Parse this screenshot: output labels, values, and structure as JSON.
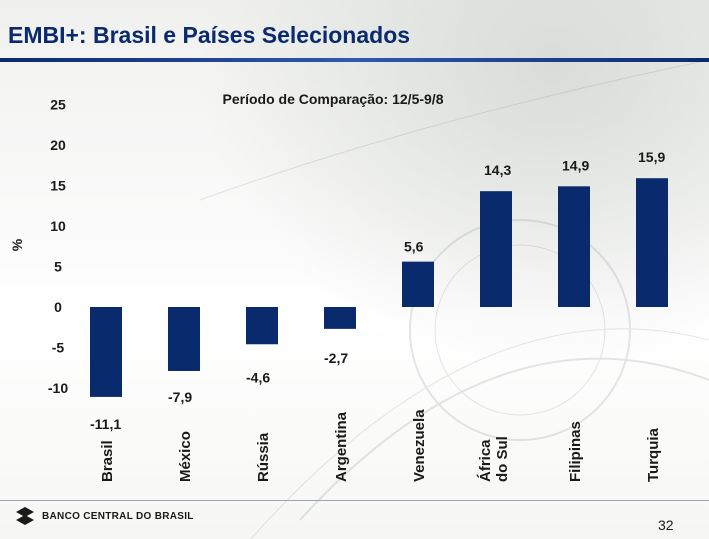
{
  "title": "EMBI+: Brasil e Países Selecionados",
  "footer": {
    "bank_name": "BANCO CENTRAL DO BRASIL",
    "page_number": "32"
  },
  "chart_data": {
    "type": "bar",
    "subtitle": "Período de Comparação: 12/5-9/8",
    "ylabel": "%",
    "xlabel": "",
    "ylim": [
      -10,
      25
    ],
    "yticks": [
      25,
      20,
      15,
      10,
      5,
      0,
      -5,
      -10
    ],
    "grid": false,
    "legend": "none",
    "bar_color": "#0a2a6e",
    "categories": [
      "Brasil",
      "México",
      "Rússia",
      "Argentina",
      "Venezuela",
      "África do Sul",
      "Filipinas",
      "Turquia"
    ],
    "values": [
      -11.1,
      -7.9,
      -4.6,
      -2.7,
      5.6,
      14.3,
      14.9,
      15.9
    ],
    "data_labels": [
      "-11,1",
      "-7,9",
      "-4,6",
      "-2,7",
      "5,6",
      "14,3",
      "14,9",
      "15,9"
    ]
  }
}
